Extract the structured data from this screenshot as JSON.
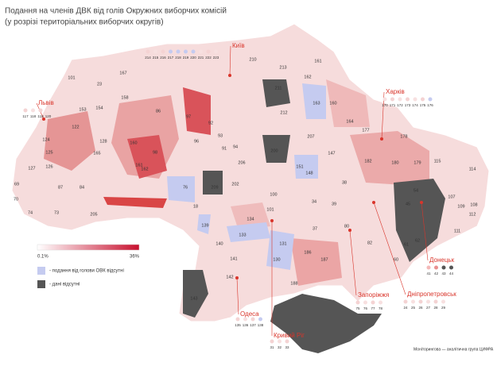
{
  "header": {
    "title": "Подання на членів ДВК від голів Окружних виборчих комісій",
    "subtitle": "(у розрізі територіальних виборчих округів)"
  },
  "legend": {
    "scale_min": "0.1%",
    "scale_max": "36%",
    "scale_colors": [
      "#ffffff",
      "#c8102e"
    ],
    "items": [
      {
        "label": "- подання від голови ОВК відсутні",
        "color": "#c5cbf0"
      },
      {
        "label": "- дані відсутні",
        "color": "#555555"
      }
    ]
  },
  "cities": [
    {
      "name": "Київ",
      "districts": [
        {
          "label": "214",
          "color": "#f4d3d3"
        },
        {
          "label": "215",
          "color": "#f7e0e0"
        },
        {
          "label": "216",
          "color": "#f4d3d3"
        },
        {
          "label": "217",
          "color": "#c5cbf0"
        },
        {
          "label": "218",
          "color": "#c5cbf0"
        },
        {
          "label": "219",
          "color": "#c5cbf0"
        },
        {
          "label": "220",
          "color": "#c5cbf0"
        },
        {
          "label": "221",
          "color": "#f7e0e0"
        },
        {
          "label": "222",
          "color": "#f4d3d3"
        },
        {
          "label": "223",
          "color": "#f7e0e0"
        }
      ]
    },
    {
      "name": "Львів",
      "districts": [
        {
          "label": "117",
          "color": "#f4d3d3"
        },
        {
          "label": "118",
          "color": "#f7e0e0"
        },
        {
          "label": "119",
          "color": "#f4d3d3"
        },
        {
          "label": "120",
          "color": "#f7e0e0"
        }
      ]
    },
    {
      "name": "Харків",
      "districts": [
        {
          "label": "170",
          "color": "#f7e0e0"
        },
        {
          "label": "171",
          "color": "#f4d3d3"
        },
        {
          "label": "172",
          "color": "#f7e0e0"
        },
        {
          "label": "173",
          "color": "#f4d3d3"
        },
        {
          "label": "174",
          "color": "#f7e0e0"
        },
        {
          "label": "175",
          "color": "#f4d3d3"
        },
        {
          "label": "176",
          "color": "#c5cbf0"
        }
      ]
    },
    {
      "name": "Донецьк",
      "districts": [
        {
          "label": "41",
          "color": "#f4b8b8"
        },
        {
          "label": "42",
          "color": "#e99090"
        },
        {
          "label": "43",
          "color": "#555555"
        },
        {
          "label": "44",
          "color": "#555555"
        }
      ]
    },
    {
      "name": "Дніпропетровськ",
      "districts": [
        {
          "label": "24",
          "color": "#f4d3d3"
        },
        {
          "label": "25",
          "color": "#f7e0e0"
        },
        {
          "label": "26",
          "color": "#f4d3d3"
        },
        {
          "label": "27",
          "color": "#f7e0e0"
        },
        {
          "label": "28",
          "color": "#f4d3d3"
        },
        {
          "label": "29",
          "color": "#f7e0e0"
        }
      ]
    },
    {
      "name": "Запоріжжя",
      "districts": [
        {
          "label": "75",
          "color": "#f4d3d3"
        },
        {
          "label": "76",
          "color": "#f7e0e0"
        },
        {
          "label": "77",
          "color": "#f4d3d3"
        },
        {
          "label": "78",
          "color": "#f7e0e0"
        }
      ]
    },
    {
      "name": "Одеса",
      "districts": [
        {
          "label": "135",
          "color": "#f4d3d3"
        },
        {
          "label": "136",
          "color": "#f7e0e0"
        },
        {
          "label": "137",
          "color": "#f4d3d3"
        },
        {
          "label": "138",
          "color": "#c5cbf0"
        }
      ]
    },
    {
      "name": "Кривий Ріг",
      "districts": [
        {
          "label": "31",
          "color": "#f4d3d3"
        },
        {
          "label": "32",
          "color": "#f7e0e0"
        },
        {
          "label": "33",
          "color": "#f4d3d3"
        }
      ]
    }
  ],
  "districts": [
    "101",
    "23",
    "167",
    "158",
    "154",
    "153",
    "122",
    "124",
    "125",
    "126",
    "127",
    "128",
    "165",
    "87",
    "84",
    "73",
    "74",
    "70",
    "69",
    "86",
    "97",
    "96",
    "160",
    "161",
    "162",
    "98",
    "92",
    "93",
    "91",
    "94",
    "206",
    "210",
    "211",
    "212",
    "213",
    "161",
    "162",
    "163",
    "160",
    "164",
    "177",
    "178",
    "179",
    "180",
    "182",
    "115",
    "114",
    "200",
    "207",
    "147",
    "148",
    "151",
    "76",
    "18",
    "209",
    "202",
    "100",
    "101",
    "134",
    "133",
    "131",
    "130",
    "186",
    "187",
    "140",
    "141",
    "139",
    "142",
    "143",
    "38",
    "39",
    "34",
    "37",
    "80",
    "82",
    "60",
    "61",
    "107",
    "109",
    "111",
    "108",
    "112",
    "54",
    "45",
    "62",
    "188",
    "205"
  ],
  "credit": "Моніторингова — аналітична група ЦИФРА"
}
